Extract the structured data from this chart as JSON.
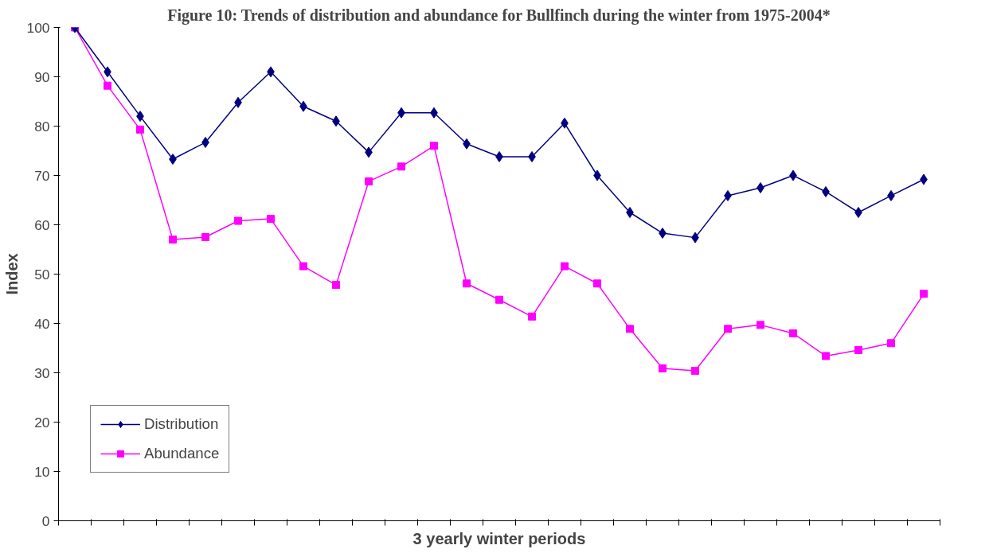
{
  "chart_data": {
    "type": "line",
    "title": "Figure 10: Trends of distribution and abundance for Bullfinch during the winter from 1975-2004*",
    "xlabel": "3 yearly winter periods",
    "ylabel": "Index",
    "categories": [
      null,
      null,
      null,
      null,
      null,
      null,
      null,
      null,
      null,
      null,
      null,
      null,
      null,
      null,
      null,
      null,
      null,
      null,
      null,
      null,
      null,
      null,
      null,
      null,
      null,
      null,
      null
    ],
    "series": [
      {
        "name": "Distribution",
        "color": "#000080",
        "marker": "diamond",
        "values": [
          100,
          91,
          82,
          73.3,
          76.7,
          84.8,
          91,
          84,
          81,
          74.7,
          82.7,
          82.7,
          76.4,
          73.8,
          73.8,
          80.6,
          70,
          62.5,
          58.3,
          57.4,
          65.9,
          67.5,
          70,
          66.7,
          62.5,
          65.9,
          69.2
        ]
      },
      {
        "name": "Abundance",
        "color": "#ff00ff",
        "marker": "square",
        "values": [
          100,
          88.2,
          79.3,
          57,
          57.5,
          60.8,
          61.2,
          51.6,
          47.8,
          68.8,
          71.8,
          76,
          48.1,
          44.8,
          41.4,
          51.6,
          48.1,
          38.9,
          30.9,
          30.4,
          38.9,
          39.7,
          38,
          33.4,
          34.6,
          36,
          46
        ]
      }
    ],
    "ylim": [
      0,
      100
    ],
    "yticks": [
      0,
      10,
      20,
      30,
      40,
      50,
      60,
      70,
      80,
      90,
      100
    ],
    "grid": false,
    "legend": "bottom left",
    "line_style": "solid"
  }
}
